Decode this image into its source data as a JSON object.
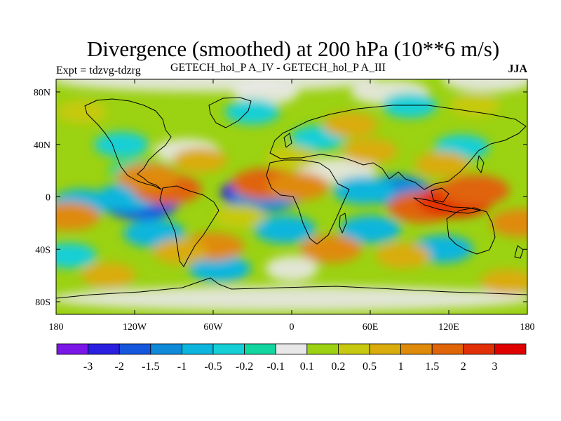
{
  "title": "Divergence (smoothed) at 200 hPa (10**6 m/s)",
  "subtitle_left": "Expt = tdzvg-tdzrg",
  "subtitle_center": "GETECH_hol_P A_IV - GETECH_hol_P A_III",
  "subtitle_right": "JJA",
  "axes": {
    "lon_ticks": [
      "180",
      "120W",
      "60W",
      "0",
      "60E",
      "120E",
      "180"
    ],
    "lat_ticks": [
      "80N",
      "40N",
      "0",
      "40S",
      "80S"
    ]
  },
  "colorbar": {
    "labels": [
      "-3",
      "-2",
      "-1.5",
      "-1",
      "-0.5",
      "-0.2",
      "-0.1",
      "0.1",
      "0.2",
      "0.5",
      "1",
      "1.5",
      "2",
      "3"
    ],
    "colors": [
      "#7b16e8",
      "#2a1ee0",
      "#1457dc",
      "#0f8ad8",
      "#0cb5dd",
      "#14cfd6",
      "#12d6a0",
      "#e8e8e8",
      "#9bd212",
      "#c6c90f",
      "#d9ac0c",
      "#df8a0a",
      "#e06408",
      "#e23006",
      "#e00000"
    ]
  },
  "field_blobs": [
    {
      "lon": -115,
      "lat": -5,
      "level": -2
    },
    {
      "lon": -125,
      "lat": 0,
      "level": -1
    },
    {
      "lon": -160,
      "lat": -5,
      "level": -1
    },
    {
      "lon": -25,
      "lat": 3,
      "level": -3
    },
    {
      "lon": -20,
      "lat": 0,
      "level": -1.5
    },
    {
      "lon": 80,
      "lat": 5,
      "level": -1.5
    },
    {
      "lon": 55,
      "lat": 5,
      "level": -1
    },
    {
      "lon": -5,
      "lat": -25,
      "level": -1
    },
    {
      "lon": 60,
      "lat": -25,
      "level": -1
    },
    {
      "lon": -105,
      "lat": -28,
      "level": -1
    },
    {
      "lon": 115,
      "lat": -40,
      "level": -1
    },
    {
      "lon": -55,
      "lat": -55,
      "level": -1
    },
    {
      "lon": 130,
      "lat": 38,
      "level": -0.5
    },
    {
      "lon": 20,
      "lat": 45,
      "level": -0.5
    },
    {
      "lon": -130,
      "lat": 40,
      "level": -0.5
    },
    {
      "lon": -30,
      "lat": 65,
      "level": -0.5
    },
    {
      "lon": 90,
      "lat": 70,
      "level": -0.5
    },
    {
      "lon": -170,
      "lat": -45,
      "level": -0.5
    },
    {
      "lon": -120,
      "lat": 20,
      "level": -0.2
    },
    {
      "lon": -95,
      "lat": 6,
      "level": 1.5
    },
    {
      "lon": -110,
      "lat": 15,
      "level": 1
    },
    {
      "lon": -20,
      "lat": 10,
      "level": 1.5
    },
    {
      "lon": 5,
      "lat": 8,
      "level": 1
    },
    {
      "lon": 100,
      "lat": -8,
      "level": 1.5
    },
    {
      "lon": 125,
      "lat": -3,
      "level": 2
    },
    {
      "lon": 140,
      "lat": 5,
      "level": 1.5
    },
    {
      "lon": -170,
      "lat": -15,
      "level": 1
    },
    {
      "lon": 175,
      "lat": -20,
      "level": 1
    },
    {
      "lon": -60,
      "lat": -38,
      "level": 1
    },
    {
      "lon": 30,
      "lat": -40,
      "level": 1
    },
    {
      "lon": -85,
      "lat": -42,
      "level": 0.5
    },
    {
      "lon": 85,
      "lat": -45,
      "level": 0.5
    },
    {
      "lon": -140,
      "lat": -60,
      "level": 0.5
    },
    {
      "lon": 165,
      "lat": -65,
      "level": 0.5
    },
    {
      "lon": 60,
      "lat": 35,
      "level": 0.5
    },
    {
      "lon": -70,
      "lat": 28,
      "level": 0.5
    },
    {
      "lon": 115,
      "lat": 25,
      "level": 0.5
    },
    {
      "lon": 45,
      "lat": 55,
      "level": 0.5
    },
    {
      "lon": 140,
      "lat": 70,
      "level": 0.2
    },
    {
      "lon": -160,
      "lat": 65,
      "level": 0.2
    },
    {
      "lon": 0,
      "lat": 30,
      "level": 0.2
    },
    {
      "lon": -40,
      "lat": -15,
      "level": 0.2
    }
  ]
}
